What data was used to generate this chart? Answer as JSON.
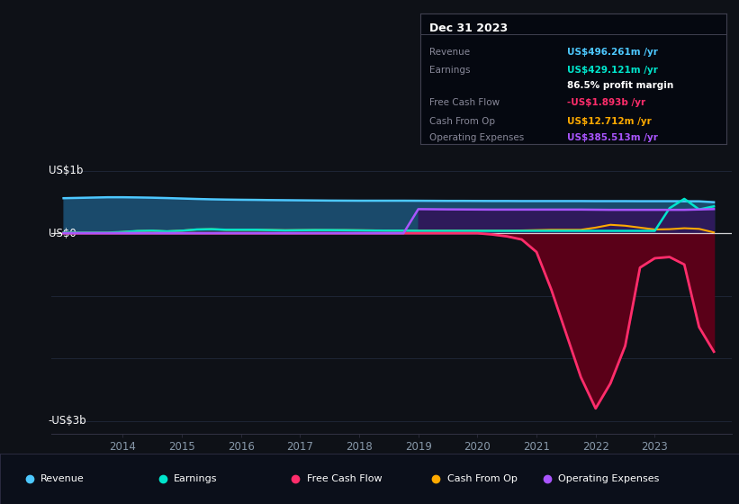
{
  "bg_color": "#0e1117",
  "plot_bg_color": "#0e1117",
  "ylabel_top": "US$1b",
  "ylabel_zero": "US$0",
  "ylabel_bottom": "-US$3b",
  "x_min": 2012.8,
  "x_max": 2024.3,
  "y_min": -3.2,
  "y_max": 1.15,
  "years": [
    2013.0,
    2013.25,
    2013.5,
    2013.75,
    2014.0,
    2014.25,
    2014.5,
    2014.75,
    2015.0,
    2015.25,
    2015.5,
    2015.75,
    2016.0,
    2016.25,
    2016.5,
    2016.75,
    2017.0,
    2017.25,
    2017.5,
    2017.75,
    2018.0,
    2018.25,
    2018.5,
    2018.75,
    2019.0,
    2019.25,
    2019.5,
    2019.75,
    2020.0,
    2020.25,
    2020.5,
    2020.75,
    2021.0,
    2021.25,
    2021.5,
    2021.75,
    2022.0,
    2022.25,
    2022.5,
    2022.75,
    2023.0,
    2023.25,
    2023.5,
    2023.75,
    2024.0
  ],
  "revenue": [
    0.56,
    0.565,
    0.57,
    0.575,
    0.575,
    0.572,
    0.568,
    0.562,
    0.555,
    0.548,
    0.542,
    0.538,
    0.535,
    0.533,
    0.53,
    0.528,
    0.526,
    0.524,
    0.522,
    0.521,
    0.52,
    0.52,
    0.52,
    0.52,
    0.519,
    0.518,
    0.517,
    0.517,
    0.516,
    0.515,
    0.515,
    0.514,
    0.514,
    0.514,
    0.514,
    0.514,
    0.513,
    0.513,
    0.513,
    0.512,
    0.512,
    0.512,
    0.511,
    0.51,
    0.496
  ],
  "earnings": [
    0.01,
    0.01,
    0.01,
    0.01,
    0.02,
    0.035,
    0.04,
    0.03,
    0.04,
    0.06,
    0.065,
    0.055,
    0.055,
    0.055,
    0.05,
    0.045,
    0.048,
    0.05,
    0.05,
    0.048,
    0.045,
    0.042,
    0.04,
    0.04,
    0.038,
    0.038,
    0.038,
    0.038,
    0.038,
    0.038,
    0.038,
    0.038,
    0.038,
    0.038,
    0.038,
    0.038,
    0.038,
    0.038,
    0.038,
    0.038,
    0.038,
    0.4,
    0.55,
    0.38,
    0.43
  ],
  "free_cash_flow": [
    0.0,
    0.0,
    0.0,
    0.0,
    0.0,
    0.0,
    0.0,
    0.0,
    0.0,
    0.0,
    0.0,
    0.0,
    0.0,
    0.0,
    0.0,
    0.0,
    0.0,
    0.0,
    0.0,
    0.0,
    0.0,
    0.0,
    0.0,
    0.0,
    0.0,
    0.0,
    0.0,
    0.0,
    0.0,
    -0.02,
    -0.05,
    -0.1,
    -0.3,
    -0.9,
    -1.6,
    -2.3,
    -2.8,
    -2.4,
    -1.8,
    -0.55,
    -0.4,
    -0.38,
    -0.5,
    -1.5,
    -1.893
  ],
  "cash_from_op": [
    0.005,
    0.005,
    0.005,
    0.005,
    0.02,
    0.035,
    0.04,
    0.03,
    0.042,
    0.06,
    0.065,
    0.055,
    0.055,
    0.055,
    0.052,
    0.048,
    0.05,
    0.052,
    0.05,
    0.05,
    0.048,
    0.046,
    0.044,
    0.044,
    0.042,
    0.042,
    0.042,
    0.042,
    0.042,
    0.042,
    0.042,
    0.045,
    0.05,
    0.055,
    0.055,
    0.055,
    0.09,
    0.135,
    0.12,
    0.09,
    0.06,
    0.065,
    0.08,
    0.07,
    0.013
  ],
  "op_expenses": [
    0.0,
    0.0,
    0.0,
    0.0,
    0.0,
    0.0,
    0.0,
    0.0,
    0.0,
    0.0,
    0.0,
    0.0,
    0.0,
    0.0,
    0.0,
    0.0,
    0.0,
    0.0,
    0.0,
    0.0,
    0.0,
    0.0,
    0.0,
    0.0,
    0.385,
    0.383,
    0.381,
    0.38,
    0.379,
    0.378,
    0.378,
    0.378,
    0.378,
    0.378,
    0.378,
    0.378,
    0.376,
    0.374,
    0.374,
    0.374,
    0.374,
    0.374,
    0.374,
    0.38,
    0.386
  ],
  "revenue_color": "#4dc8ff",
  "revenue_fill_color": "#1a4a6b",
  "earnings_color": "#00e5cc",
  "free_cash_flow_color": "#ff2d6b",
  "free_cash_flow_fill_color": "#5a0018",
  "cash_from_op_color": "#ffaa00",
  "op_expenses_color": "#aa55ff",
  "op_expenses_fill_color": "#2e1a5a",
  "xticks": [
    2014,
    2015,
    2016,
    2017,
    2018,
    2019,
    2020,
    2021,
    2022,
    2023
  ],
  "grid_color": "#1e2535",
  "zero_line_color": "#ffffff",
  "text_color_dim": "#8899aa",
  "legend_items": [
    {
      "label": "Revenue",
      "color": "#4dc8ff"
    },
    {
      "label": "Earnings",
      "color": "#00e5cc"
    },
    {
      "label": "Free Cash Flow",
      "color": "#ff2d6b"
    },
    {
      "label": "Cash From Op",
      "color": "#ffaa00"
    },
    {
      "label": "Operating Expenses",
      "color": "#aa55ff"
    }
  ],
  "info_box": {
    "date": "Dec 31 2023",
    "rows": [
      {
        "label": "Revenue",
        "value": "US$496.261m /yr",
        "value_color": "#4dc8ff"
      },
      {
        "label": "Earnings",
        "value": "US$429.121m /yr",
        "value_color": "#00e5cc"
      },
      {
        "label": "",
        "value": "86.5% profit margin",
        "value_color": "#ffffff"
      },
      {
        "label": "Free Cash Flow",
        "value": "-US$1.893b /yr",
        "value_color": "#ff2d6b"
      },
      {
        "label": "Cash From Op",
        "value": "US$12.712m /yr",
        "value_color": "#ffaa00"
      },
      {
        "label": "Operating Expenses",
        "value": "US$385.513m /yr",
        "value_color": "#aa55ff"
      }
    ]
  }
}
